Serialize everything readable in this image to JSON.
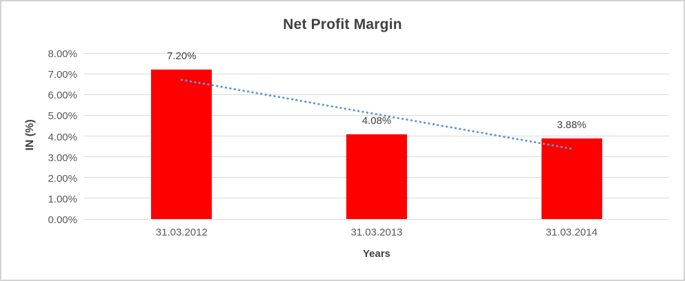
{
  "chart_data": {
    "type": "bar",
    "title": "Net Profit Margin",
    "xlabel": "Years",
    "ylabel": "IN (%)",
    "categories": [
      "31.03.2012",
      "31.03.2013",
      "31.03.2014"
    ],
    "values": [
      7.2,
      4.08,
      3.88
    ],
    "data_labels": [
      "7.20%",
      "4.08%",
      "3.88%"
    ],
    "ylim": [
      0,
      8
    ],
    "ytick_labels": [
      "0.00%",
      "1.00%",
      "2.00%",
      "3.00%",
      "4.00%",
      "5.00%",
      "6.00%",
      "7.00%",
      "8.00%"
    ],
    "grid": true,
    "legend_position": "none",
    "colors": {
      "bar": "#FF0000",
      "trendline": "#5B9BD5",
      "gridline": "#D9D9D9",
      "title_text": "#3F3F3F",
      "tick_text": "#595959",
      "frame_border": "#D2D2D2"
    },
    "trendline": {
      "style": "dotted",
      "color": "#5B9BD5",
      "start": {
        "category_index": 0,
        "value": 6.71
      },
      "end": {
        "category_index": 2,
        "value": 3.39
      }
    }
  }
}
